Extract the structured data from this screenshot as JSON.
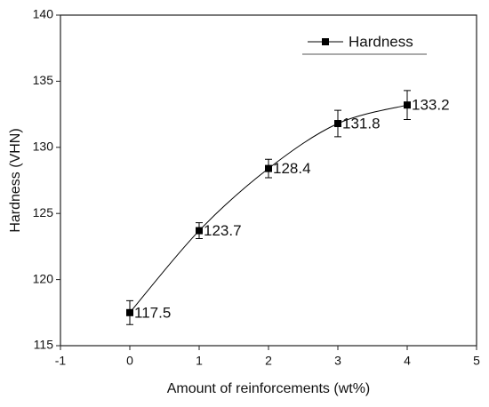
{
  "chart_data": {
    "type": "line",
    "x_label": "Amount of reinforcements (wt%)",
    "y_label": "Hardness (VHN)",
    "x": [
      0,
      1,
      2,
      3,
      4
    ],
    "series": [
      {
        "name": "Hardness",
        "color": "#000000",
        "values": [
          117.5,
          123.7,
          128.4,
          131.8,
          133.2
        ],
        "errors": [
          0.9,
          0.6,
          0.7,
          1.0,
          1.1
        ]
      }
    ],
    "xlim": [
      -1,
      5
    ],
    "xticks": [
      -1,
      0,
      1,
      2,
      3,
      4,
      5
    ],
    "ylim": [
      115,
      140
    ],
    "yticks": [
      115,
      120,
      125,
      130,
      135,
      140
    ],
    "legend": "upper right",
    "smooth": true,
    "data_labels": true
  }
}
